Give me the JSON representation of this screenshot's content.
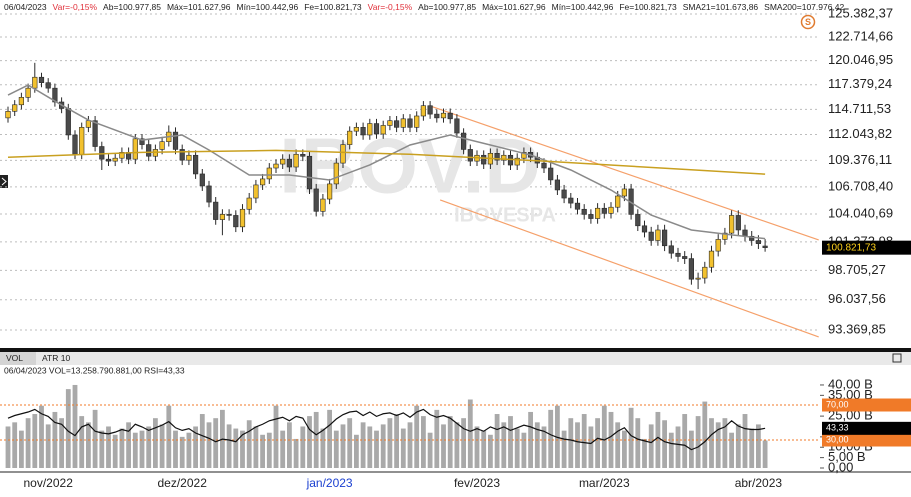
{
  "chart_data": [
    {
      "type": "candlestick",
      "header": [
        {
          "text": "06/04/2023",
          "color": "#222222"
        },
        {
          "text": "Var=-0,15%",
          "color": "#e0303a"
        },
        {
          "text": "Ab=100.977,85",
          "color": "#222222"
        },
        {
          "text": "Máx=101.627,96",
          "color": "#222222"
        },
        {
          "text": "Mín=100.442,96",
          "color": "#222222"
        },
        {
          "text": "Fe=100.821,73",
          "color": "#222222"
        },
        {
          "text": "Var=-0,15%",
          "color": "#e0303a"
        },
        {
          "text": "Ab=100.977,85",
          "color": "#222222"
        },
        {
          "text": "Máx=101.627,96",
          "color": "#222222"
        },
        {
          "text": "Mín=100.442,96",
          "color": "#222222"
        },
        {
          "text": "Fe=100.821,73",
          "color": "#222222"
        },
        {
          "text": "SMA21=101.673,86",
          "color": "#222222"
        },
        {
          "text": "SMA200=107.976,42",
          "color": "#222222"
        }
      ],
      "watermark": "IBOV.D",
      "watermark_subtitle": "IBOVESPA",
      "icon_label": "S",
      "up_color": "#f2c12e",
      "down_color": "#4a4a4a",
      "outline_color": "#2a2a2a",
      "open": [
        113800,
        114500,
        115200,
        116000,
        117000,
        118200,
        117600,
        117000,
        115500,
        114800,
        112000,
        110000,
        112800,
        113500,
        110800,
        109500,
        109300,
        109600,
        110200,
        109500,
        111600,
        111000,
        109800,
        110500,
        111300,
        112300,
        110500,
        109400,
        109900,
        108000,
        106800,
        105200,
        103500,
        104000,
        103900,
        102800,
        104500,
        105600,
        106900,
        107500,
        108600,
        109000,
        109500,
        108700,
        110000,
        109800,
        106500,
        104300,
        105500,
        107000,
        109100,
        111000,
        112400,
        112800,
        112000,
        113200,
        112100,
        113000,
        113500,
        112800,
        113700,
        112800,
        114000,
        115100,
        114200,
        113800,
        114300,
        113700,
        112200,
        110500,
        109300,
        109900,
        109000,
        110100,
        109400,
        109900,
        108900,
        109600,
        110200,
        109700,
        109100,
        108600,
        107400,
        106400,
        105600,
        105100,
        104500,
        104000,
        103600,
        104600,
        104100,
        104700,
        105800,
        106500,
        104000,
        102900,
        102300,
        101500,
        102500,
        101000,
        100300,
        100000,
        99800,
        97900,
        98000,
        99000,
        100500,
        101600,
        102200,
        103900,
        102500,
        101900,
        101500,
        100977.85
      ],
      "high": [
        115000,
        115700,
        116500,
        117500,
        119800,
        118700,
        118100,
        117500,
        116000,
        115300,
        112500,
        113300,
        114000,
        114000,
        111300,
        110000,
        110100,
        110700,
        110700,
        112100,
        112100,
        111500,
        111000,
        111800,
        113000,
        112800,
        111000,
        110400,
        110400,
        108500,
        107300,
        105700,
        104500,
        104500,
        104400,
        105000,
        106100,
        107400,
        108000,
        109100,
        109500,
        110000,
        110000,
        110500,
        110500,
        110300,
        107000,
        106000,
        107500,
        109600,
        111500,
        112900,
        113300,
        113300,
        113700,
        113700,
        113500,
        114000,
        114000,
        114200,
        114200,
        114500,
        115600,
        115600,
        114700,
        114800,
        114800,
        114200,
        112700,
        111000,
        110400,
        110400,
        110600,
        110600,
        110400,
        110400,
        110100,
        110700,
        110700,
        110200,
        109600,
        109100,
        107900,
        106900,
        106100,
        105600,
        105000,
        104500,
        105100,
        105100,
        105200,
        106300,
        107000,
        107000,
        104500,
        103400,
        102800,
        103000,
        103000,
        101500,
        100800,
        100500,
        100300,
        98500,
        99500,
        101000,
        102100,
        102700,
        104400,
        104400,
        103000,
        102400,
        102000,
        101627.96
      ],
      "low": [
        113300,
        114000,
        114700,
        115500,
        116500,
        117100,
        116500,
        115000,
        114300,
        111500,
        109500,
        109500,
        112300,
        110300,
        108400,
        108800,
        108800,
        109100,
        109000,
        109000,
        110500,
        109300,
        109300,
        110000,
        110800,
        110000,
        108900,
        108900,
        107500,
        106300,
        104700,
        103000,
        102000,
        103400,
        102300,
        102300,
        104000,
        105100,
        106400,
        107000,
        108100,
        108500,
        108200,
        108200,
        109300,
        106000,
        103800,
        103800,
        105000,
        106500,
        108600,
        110500,
        111900,
        111500,
        111500,
        111600,
        111600,
        112500,
        112300,
        112300,
        112300,
        112300,
        113500,
        113700,
        113300,
        113300,
        113200,
        111700,
        110000,
        108800,
        108800,
        108500,
        108500,
        108900,
        108900,
        108400,
        108400,
        109100,
        109200,
        108600,
        108100,
        106900,
        105900,
        105100,
        104600,
        104000,
        103500,
        103100,
        103100,
        103600,
        103600,
        104200,
        105300,
        103500,
        102400,
        101800,
        101000,
        101000,
        100500,
        99800,
        99500,
        99300,
        97400,
        97000,
        97500,
        98500,
        100000,
        101100,
        101700,
        102000,
        101400,
        101000,
        100700,
        100442.96
      ],
      "close": [
        114500,
        115200,
        116000,
        117000,
        118200,
        117600,
        117000,
        115500,
        114800,
        112000,
        110000,
        112800,
        113500,
        110800,
        109500,
        109300,
        109600,
        110200,
        109500,
        111600,
        111000,
        109800,
        110500,
        111300,
        112300,
        110500,
        109400,
        109900,
        108000,
        106800,
        105200,
        103500,
        104000,
        103900,
        102800,
        104500,
        105600,
        106900,
        107500,
        108600,
        109000,
        109500,
        108700,
        110000,
        109800,
        106500,
        104300,
        105500,
        107000,
        109100,
        111000,
        112400,
        112800,
        112000,
        113200,
        112100,
        113000,
        113500,
        112800,
        113700,
        112800,
        114000,
        115100,
        114200,
        113800,
        114300,
        113700,
        112200,
        110500,
        109300,
        109900,
        109000,
        110100,
        109400,
        109900,
        108900,
        109600,
        110200,
        109700,
        109100,
        108600,
        107400,
        106400,
        105600,
        105100,
        104500,
        104000,
        103600,
        104600,
        104100,
        104700,
        105800,
        106500,
        104000,
        102900,
        102300,
        101500,
        102500,
        101000,
        100300,
        100000,
        99800,
        97900,
        98000,
        99000,
        100500,
        101600,
        102200,
        103900,
        102500,
        101900,
        101500,
        101200,
        100821.73
      ],
      "lines": [
        {
          "color": "#8a8a8a",
          "x": [
            0,
            3,
            8,
            12,
            20,
            26,
            30,
            36,
            42,
            48,
            54,
            60,
            66,
            72,
            78,
            84,
            90,
            96,
            102,
            108,
            113
          ],
          "values": [
            116250,
            117340,
            115170,
            113570,
            111470,
            111990,
            110440,
            107890,
            107890,
            107390,
            108910,
            110960,
            111990,
            110960,
            109930,
            108400,
            106390,
            103940,
            102500,
            102030,
            101673.86
          ]
        },
        {
          "color": "#c9a020",
          "x": [
            0,
            20,
            40,
            60,
            80,
            100,
            113
          ],
          "values": [
            109700,
            110200,
            110400,
            110000,
            109300,
            108500,
            107976.42
          ]
        }
      ],
      "trendlines": [
        {
          "color": "#f5a06a",
          "x": [
            63,
            121
          ],
          "values": [
            115070,
            101550
          ]
        },
        {
          "color": "#f5a06a",
          "x": [
            64.5,
            121
          ],
          "values": [
            105410,
            92760
          ]
        }
      ],
      "log_scale": true,
      "grid": true,
      "ylim": [
        92070,
        125850
      ],
      "yticks": [
        {
          "value": 125382.37,
          "label": "125.382,37"
        },
        {
          "value": 122714.66,
          "label": "122.714,66"
        },
        {
          "value": 120046.95,
          "label": "120.046,95"
        },
        {
          "value": 117379.24,
          "label": "117.379,24"
        },
        {
          "value": 114711.53,
          "label": "114.711,53"
        },
        {
          "value": 112043.82,
          "label": "112.043,82"
        },
        {
          "value": 109376.11,
          "label": "109.376,11"
        },
        {
          "value": 106708.4,
          "label": "106.708,40"
        },
        {
          "value": 104040.69,
          "label": "104.040,69"
        },
        {
          "value": 101372.98,
          "label": "101.372,98"
        },
        {
          "value": 98705.27,
          "label": "98.705,27"
        },
        {
          "value": 96037.56,
          "label": "96.037,56"
        },
        {
          "value": 93369.85,
          "label": "93.369,85"
        }
      ],
      "last_label": {
        "value": 100821.73,
        "label": "100.821,73"
      }
    },
    {
      "type": "bar",
      "tabs": [
        "VOL",
        "ATR 10"
      ],
      "header": "06/04/2023  VOL=13.258.790.881,00  RSI=43,33",
      "categories": [
        null,
        null,
        null,
        null,
        null,
        null,
        "nov/2022",
        null,
        null,
        null,
        null,
        null,
        null,
        null,
        null,
        null,
        null,
        null,
        null,
        null,
        null,
        null,
        null,
        null,
        null,
        null,
        "dez/2022",
        null,
        null,
        null,
        null,
        null,
        null,
        null,
        null,
        null,
        null,
        null,
        null,
        null,
        null,
        null,
        null,
        null,
        null,
        null,
        null,
        null,
        "jan/2023",
        null,
        null,
        null,
        null,
        null,
        null,
        null,
        null,
        null,
        null,
        null,
        null,
        null,
        null,
        null,
        null,
        null,
        null,
        null,
        null,
        null,
        "fev/2023",
        null,
        null,
        null,
        null,
        null,
        null,
        null,
        null,
        null,
        null,
        null,
        null,
        null,
        null,
        null,
        null,
        null,
        null,
        "mar/2023",
        null,
        null,
        null,
        null,
        null,
        null,
        null,
        null,
        null,
        null,
        null,
        null,
        null,
        null,
        null,
        null,
        null,
        null,
        null,
        null,
        null,
        null,
        "abr/2023",
        null
      ],
      "highlight_category_index": 48,
      "highlight_color": "#1a3fd0",
      "series": [
        {
          "color": "#a9a9a9",
          "values": [
            20,
            22,
            18,
            24,
            26,
            30,
            21,
            27,
            24,
            38,
            40,
            25,
            22,
            28,
            18,
            20,
            16,
            19,
            22,
            17,
            18,
            20,
            24,
            21,
            30,
            18,
            15,
            17,
            20,
            26,
            22,
            24,
            28,
            21,
            19,
            18,
            23,
            20,
            16,
            17,
            30,
            18,
            22,
            14,
            20,
            25,
            27,
            19,
            28,
            18,
            21,
            24,
            16,
            22,
            20,
            18,
            21,
            24,
            26,
            19,
            22,
            30,
            25,
            17,
            28,
            21,
            25,
            22,
            24,
            33,
            20,
            18,
            16,
            26,
            22,
            25,
            19,
            17,
            27,
            22,
            20,
            28,
            30,
            18,
            24,
            22,
            26,
            20,
            24,
            30,
            27,
            22,
            18,
            29,
            24,
            14,
            21,
            27,
            23,
            17,
            20,
            26,
            18,
            25,
            32,
            24,
            22,
            24,
            17,
            21,
            26,
            19,
            21,
            13.26
          ]
        },
        {
          "color": "#111111",
          "axis": "y2",
          "values": [
            55,
            58,
            60,
            62,
            65,
            60,
            57,
            50,
            48,
            40,
            35,
            45,
            48,
            40,
            38,
            37,
            39,
            42,
            40,
            48,
            45,
            41,
            44,
            47,
            51,
            44,
            41,
            43,
            38,
            35,
            32,
            28,
            31,
            30,
            28,
            36,
            40,
            45,
            48,
            52,
            54,
            56,
            52,
            57,
            55,
            42,
            36,
            41,
            47,
            54,
            59,
            62,
            63,
            58,
            62,
            57,
            60,
            61,
            58,
            61,
            56,
            62,
            65,
            59,
            56,
            58,
            55,
            49,
            43,
            40,
            43,
            40,
            45,
            42,
            45,
            41,
            44,
            47,
            45,
            42,
            40,
            36,
            33,
            31,
            30,
            28,
            27,
            26,
            32,
            30,
            34,
            40,
            44,
            35,
            31,
            29,
            27,
            33,
            28,
            26,
            25,
            24,
            19,
            22,
            28,
            36,
            42,
            45,
            52,
            46,
            43,
            42,
            42,
            43.33
          ]
        }
      ],
      "ylim": [
        0,
        44.8
      ],
      "yticks": [
        {
          "value": 40,
          "label": "40,00 B"
        },
        {
          "value": 35,
          "label": "35,00 B"
        },
        {
          "value": 25,
          "label": "25,00 B"
        },
        {
          "value": 15,
          "label": "15,00 B"
        },
        {
          "value": 10,
          "label": "10,00 B"
        },
        {
          "value": 5,
          "label": "5,00 B"
        },
        {
          "value": 0,
          "label": "0,00"
        }
      ],
      "y2lim": [
        -2,
        104.3
      ],
      "y2ticks": [
        {
          "value": 70,
          "label": "70,00"
        },
        {
          "value": 30,
          "label": "30,00"
        }
      ],
      "y2_level_color": "#f07a28",
      "last_y2_label": {
        "value": 43.33,
        "label": "43,33"
      }
    }
  ]
}
